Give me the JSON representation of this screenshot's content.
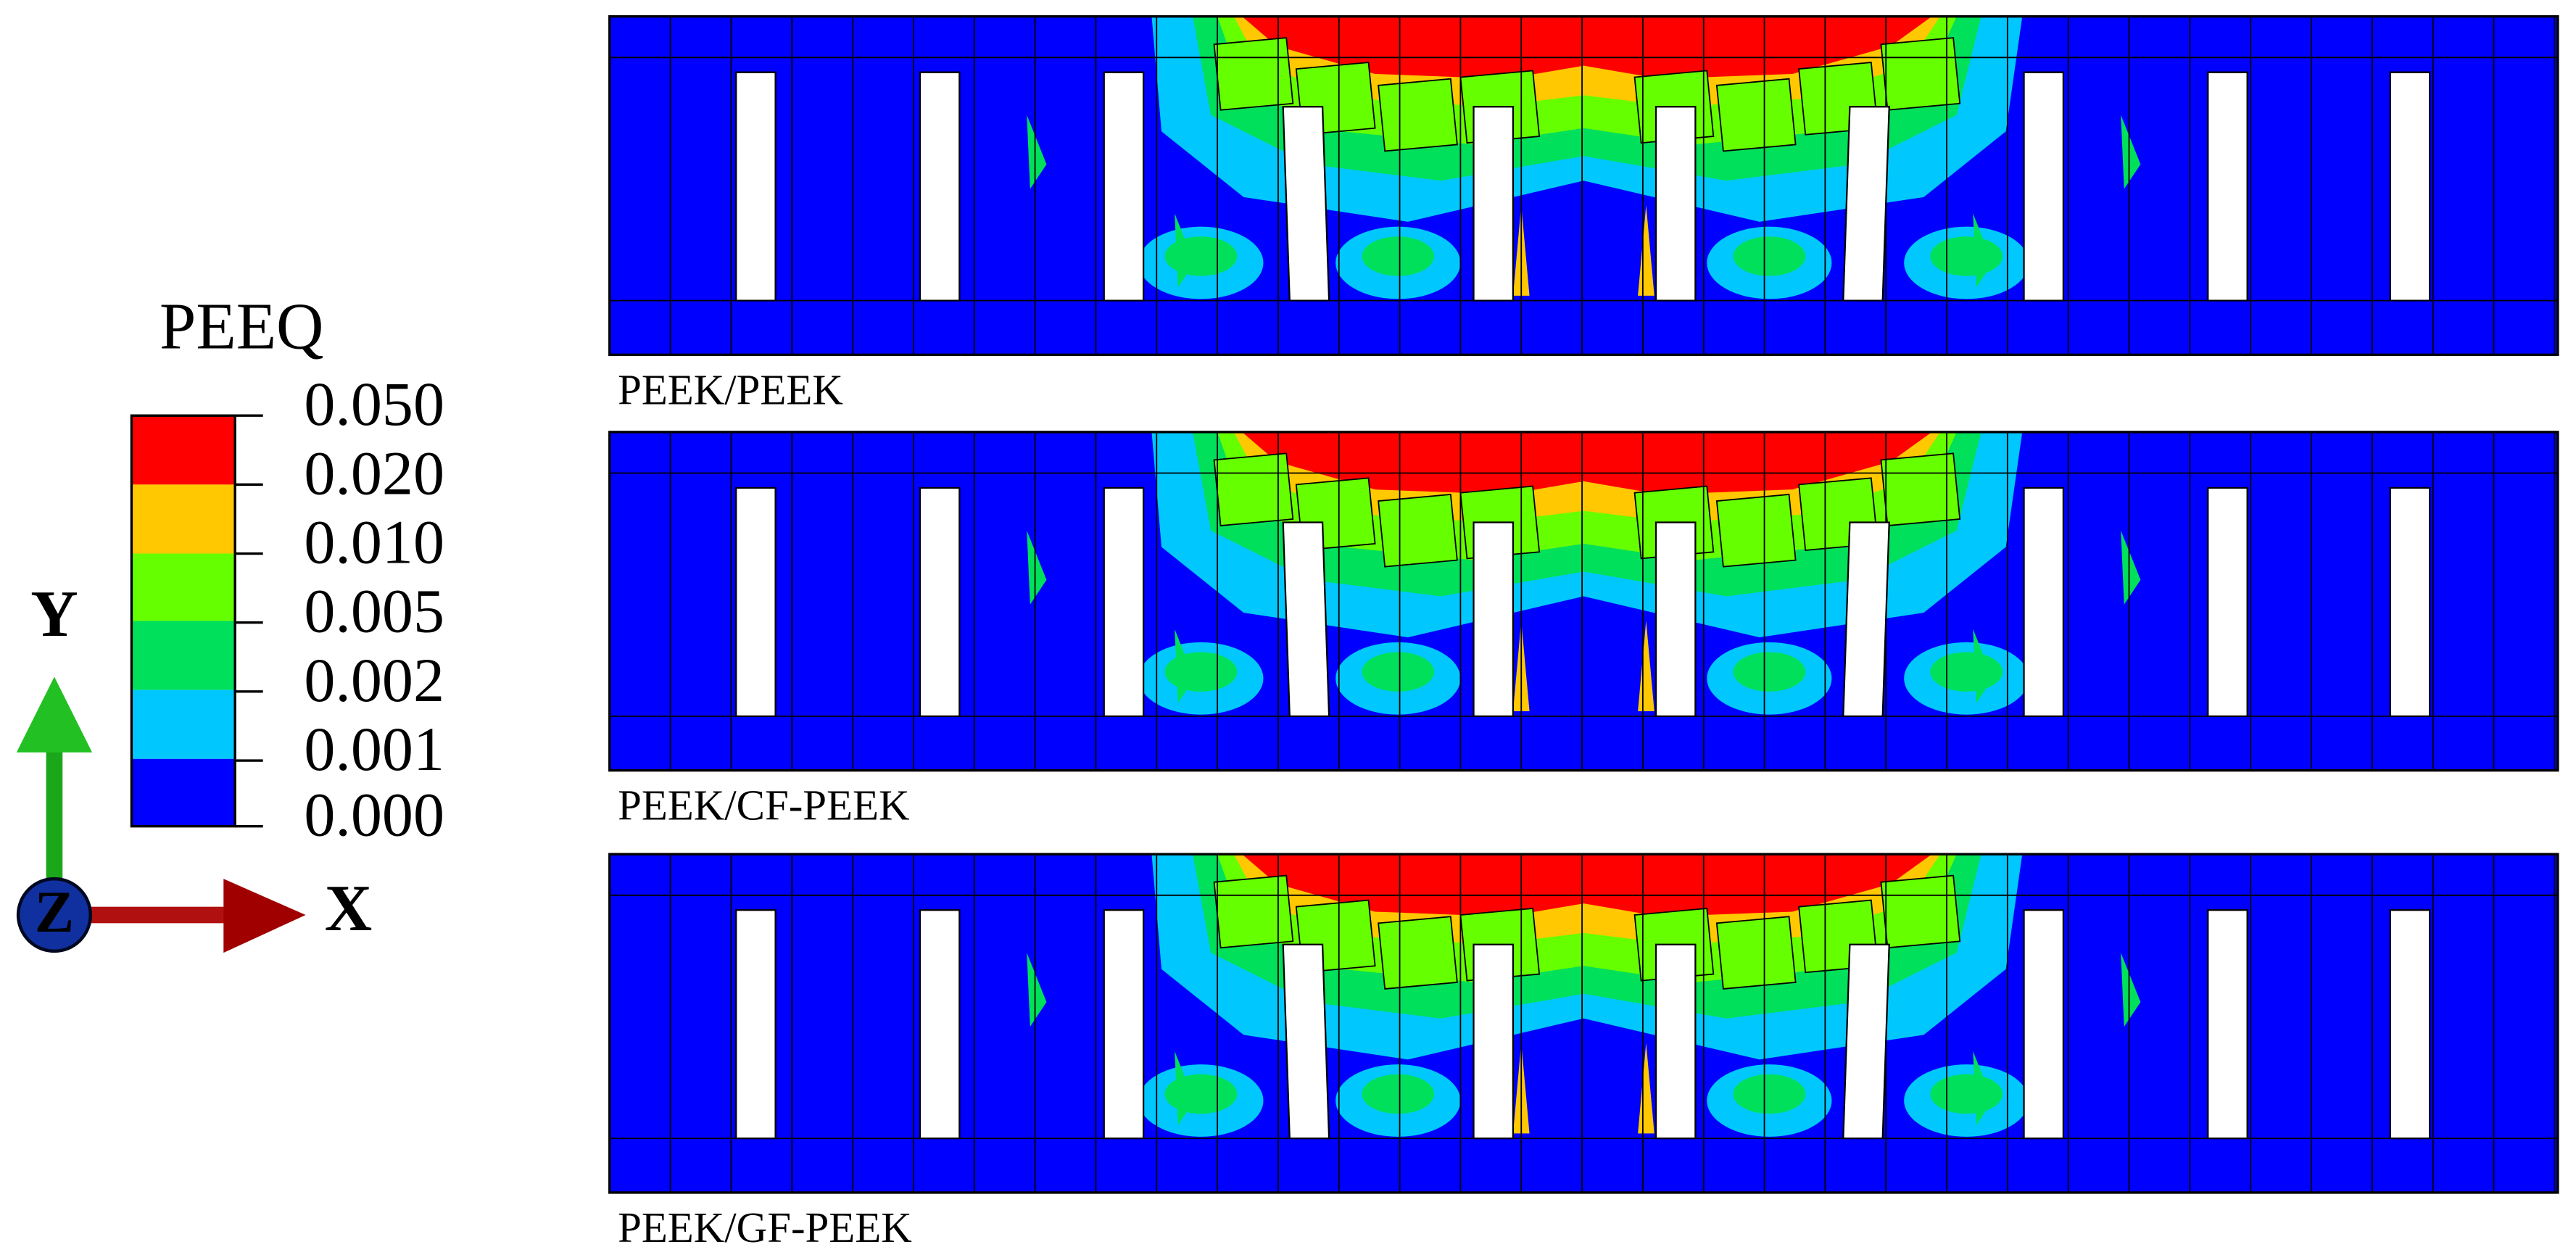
{
  "legend": {
    "title": "PEEQ",
    "labels": [
      "0.050",
      "0.020",
      "0.010",
      "0.005",
      "0.002",
      "0.001",
      "0.000"
    ]
  },
  "triad": {
    "y": "Y",
    "x": "X",
    "z": "Z"
  },
  "panels": [
    {
      "caption": "PEEK/PEEK"
    },
    {
      "caption": "PEEK/CF-PEEK"
    },
    {
      "caption": "PEEK/GF-PEEK"
    }
  ]
}
